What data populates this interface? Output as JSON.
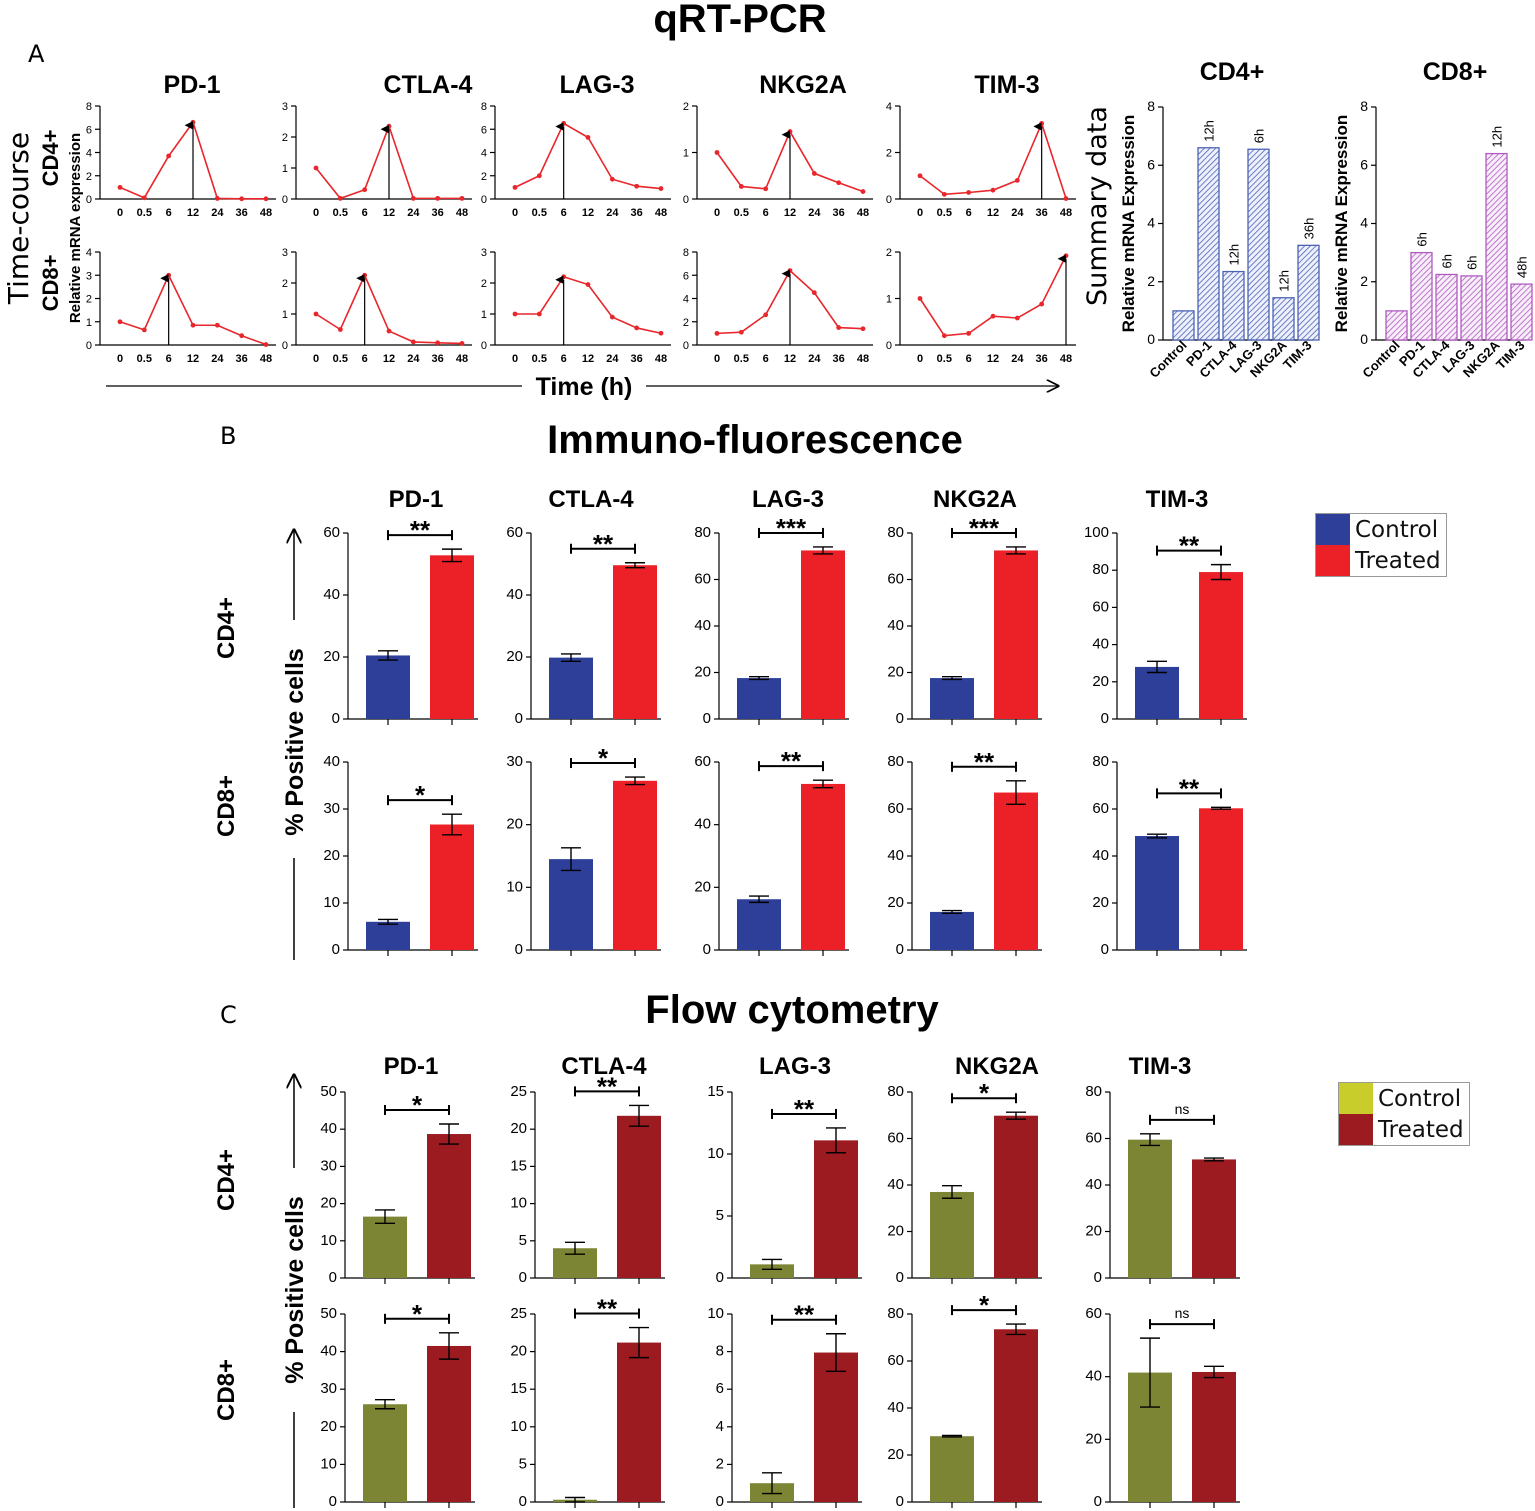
{
  "figure": {
    "section_a": {
      "letter": "A",
      "title": "qRT-PCR"
    },
    "section_b": {
      "letter": "B",
      "title": "Immuno-fluorescence"
    },
    "section_c": {
      "letter": "C",
      "title": "Flow cytometry"
    },
    "time_course_label": "Time-course",
    "summary_label": "Summary data",
    "time_axis_label": "Time (h)",
    "pos_cells_label": "% Positive cells",
    "cd4_label": "CD4+",
    "cd8_label": "CD8+",
    "legend_b": {
      "control": "Control",
      "treated": "Treated"
    },
    "legend_c": {
      "control": "Control",
      "treated": "Treated"
    },
    "colors": {
      "line": "#e8262b",
      "if_control": "#2e3f99",
      "if_treated": "#ec2027",
      "fc_control": "#7c8533",
      "fc_treated": "#9b1b20",
      "sum_cd4": "#4c63b6",
      "sum_cd8": "#b15bc0",
      "legend_fc_control": "#c9cd2c"
    }
  },
  "chart_data": [
    {
      "type": "line",
      "group": "timecourse",
      "genes": [
        "PD-1",
        "CTLA-4",
        "LAG-3",
        "NKG2A",
        "TIM-3"
      ],
      "x": [
        "0",
        "0.5",
        "6",
        "12",
        "24",
        "36",
        "48"
      ],
      "xlabel": "Time (h)",
      "ylabel": "Relative mRNA expression",
      "cd4": [
        {
          "gene": "PD-1",
          "ticks": [
            0,
            2,
            4,
            6,
            8
          ],
          "ylim": [
            0,
            8
          ],
          "values": [
            1,
            0.1,
            3.7,
            6.6,
            0.05,
            0.02,
            0.02
          ]
        },
        {
          "gene": "CTLA-4",
          "ticks": [
            0,
            1,
            2,
            3
          ],
          "ylim": [
            0,
            3
          ],
          "values": [
            1,
            0.02,
            0.3,
            2.35,
            0.02,
            0.02,
            0.02
          ]
        },
        {
          "gene": "LAG-3",
          "ticks": [
            0,
            2,
            4,
            6,
            8
          ],
          "ylim": [
            0,
            8
          ],
          "values": [
            1,
            2,
            6.5,
            5.3,
            1.7,
            1.1,
            0.9
          ]
        },
        {
          "gene": "NKG2A",
          "ticks": [
            0,
            1,
            2
          ],
          "ylim": [
            0,
            2
          ],
          "values": [
            1,
            0.27,
            0.22,
            1.45,
            0.55,
            0.35,
            0.16
          ]
        },
        {
          "gene": "TIM-3",
          "ticks": [
            0,
            2,
            4
          ],
          "ylim": [
            0,
            4
          ],
          "values": [
            1,
            0.2,
            0.28,
            0.38,
            0.8,
            3.25,
            0.02
          ]
        }
      ],
      "cd8": [
        {
          "gene": "PD-1",
          "ticks": [
            0,
            1,
            2,
            3,
            4
          ],
          "ylim": [
            0,
            4
          ],
          "values": [
            1,
            0.65,
            3,
            0.85,
            0.85,
            0.4,
            0.02
          ]
        },
        {
          "gene": "CTLA-4",
          "ticks": [
            0,
            1,
            2,
            3
          ],
          "ylim": [
            0,
            3
          ],
          "values": [
            1,
            0.5,
            2.25,
            0.45,
            0.1,
            0.07,
            0.05
          ]
        },
        {
          "gene": "LAG-3",
          "ticks": [
            0,
            1,
            2,
            3
          ],
          "ylim": [
            0,
            3
          ],
          "values": [
            1,
            1,
            2.2,
            1.95,
            0.9,
            0.55,
            0.38
          ]
        },
        {
          "gene": "NKG2A",
          "ticks": [
            0,
            2,
            4,
            6,
            8
          ],
          "ylim": [
            0,
            8
          ],
          "values": [
            1,
            1.1,
            2.6,
            6.4,
            4.5,
            1.5,
            1.4
          ]
        },
        {
          "gene": "TIM-3",
          "ticks": [
            0,
            1,
            2
          ],
          "ylim": [
            0,
            2
          ],
          "values": [
            1,
            0.2,
            0.25,
            0.62,
            0.58,
            0.88,
            1.92
          ]
        }
      ],
      "peak_index_cd4": [
        3,
        3,
        2,
        3,
        5
      ],
      "peak_index_cd8": [
        2,
        2,
        2,
        3,
        6
      ]
    },
    {
      "type": "bar",
      "group": "summary",
      "title": "CD4+",
      "ylabel": "Relative mRNA Expression",
      "categories": [
        "Control",
        "PD-1",
        "CTLA-4",
        "LAG-3",
        "NKG2A",
        "TIM-3"
      ],
      "values": [
        1,
        6.6,
        2.35,
        6.55,
        1.45,
        3.25
      ],
      "labels": [
        "",
        "12h",
        "12h",
        "6h",
        "12h",
        "36h"
      ],
      "ylim": [
        0,
        8
      ],
      "ticks": [
        0,
        2,
        4,
        6,
        8
      ]
    },
    {
      "type": "bar",
      "group": "summary",
      "title": "CD8+",
      "ylabel": "Relative mRNA Expression",
      "categories": [
        "Control",
        "PD-1",
        "CTLA-4",
        "LAG-3",
        "NKG2A",
        "TIM-3"
      ],
      "values": [
        1,
        3,
        2.25,
        2.2,
        6.4,
        1.92
      ],
      "labels": [
        "",
        "6h",
        "6h",
        "6h",
        "12h",
        "48h"
      ],
      "ylim": [
        0,
        8
      ],
      "ticks": [
        0,
        2,
        4,
        6,
        8
      ]
    },
    {
      "type": "bar",
      "group": "immunofluorescence",
      "genes": [
        "PD-1",
        "CTLA-4",
        "LAG-3",
        "NKG2A",
        "TIM-3"
      ],
      "series": [
        "Control",
        "Treated"
      ],
      "ylabel": "% Positive cells",
      "cd4": [
        {
          "gene": "PD-1",
          "ylim": [
            0,
            60
          ],
          "ticks": [
            0,
            20,
            40,
            60
          ],
          "control": 20.5,
          "treated": 52.8,
          "err_c": 1.5,
          "err_t": 2,
          "sig": "**"
        },
        {
          "gene": "CTLA-4",
          "ylim": [
            0,
            60
          ],
          "ticks": [
            0,
            20,
            40,
            60
          ],
          "control": 19.8,
          "treated": 49.6,
          "err_c": 1.2,
          "err_t": 0.8,
          "sig": "**"
        },
        {
          "gene": "LAG-3",
          "ylim": [
            0,
            80
          ],
          "ticks": [
            0,
            20,
            40,
            60,
            80
          ],
          "control": 17.6,
          "treated": 72.5,
          "err_c": 0.6,
          "err_t": 1.5,
          "sig": "***"
        },
        {
          "gene": "NKG2A",
          "ylim": [
            0,
            80
          ],
          "ticks": [
            0,
            20,
            40,
            60,
            80
          ],
          "control": 17.6,
          "treated": 72.5,
          "err_c": 0.6,
          "err_t": 1.5,
          "sig": "***"
        },
        {
          "gene": "TIM-3",
          "ylim": [
            0,
            100
          ],
          "ticks": [
            0,
            20,
            40,
            60,
            80,
            100
          ],
          "control": 28,
          "treated": 79,
          "err_c": 3,
          "err_t": 4,
          "sig": "**"
        }
      ],
      "cd8": [
        {
          "gene": "PD-1",
          "ylim": [
            0,
            40
          ],
          "ticks": [
            0,
            10,
            20,
            30,
            40
          ],
          "control": 6,
          "treated": 26.7,
          "err_c": 0.5,
          "err_t": 2.2,
          "sig": "*"
        },
        {
          "gene": "CTLA-4",
          "ylim": [
            0,
            30
          ],
          "ticks": [
            0,
            10,
            20,
            30
          ],
          "control": 14.5,
          "treated": 27,
          "err_c": 1.8,
          "err_t": 0.6,
          "sig": "*"
        },
        {
          "gene": "LAG-3",
          "ylim": [
            0,
            60
          ],
          "ticks": [
            0,
            20,
            40,
            60
          ],
          "control": 16.2,
          "treated": 53,
          "err_c": 1,
          "err_t": 1.2,
          "sig": "**"
        },
        {
          "gene": "NKG2A",
          "ylim": [
            0,
            80
          ],
          "ticks": [
            0,
            20,
            40,
            60,
            80
          ],
          "control": 16.2,
          "treated": 67,
          "err_c": 0.6,
          "err_t": 5,
          "sig": "**"
        },
        {
          "gene": "TIM-3",
          "ylim": [
            0,
            80
          ],
          "ticks": [
            0,
            20,
            40,
            60,
            80
          ],
          "control": 48.5,
          "treated": 60.3,
          "err_c": 0.8,
          "err_t": 0.4,
          "sig": "**"
        }
      ]
    },
    {
      "type": "bar",
      "group": "flow_cytometry",
      "genes": [
        "PD-1",
        "CTLA-4",
        "LAG-3",
        "NKG2A",
        "TIM-3"
      ],
      "series": [
        "Control",
        "Treated"
      ],
      "ylabel": "% Positive cells",
      "cd4": [
        {
          "gene": "PD-1",
          "ylim": [
            0,
            50
          ],
          "ticks": [
            0,
            10,
            20,
            30,
            40,
            50
          ],
          "control": 16.5,
          "treated": 38.7,
          "err_c": 1.8,
          "err_t": 2.7,
          "sig": "*"
        },
        {
          "gene": "CTLA-4",
          "ylim": [
            0,
            25
          ],
          "ticks": [
            0,
            5,
            10,
            15,
            20,
            25
          ],
          "control": 4,
          "treated": 21.8,
          "err_c": 0.8,
          "err_t": 1.4,
          "sig": "**"
        },
        {
          "gene": "LAG-3",
          "ylim": [
            0,
            15
          ],
          "ticks": [
            0,
            5,
            10,
            15
          ],
          "control": 1.1,
          "treated": 11.1,
          "err_c": 0.4,
          "err_t": 1,
          "sig": "**"
        },
        {
          "gene": "NKG2A",
          "ylim": [
            0,
            80
          ],
          "ticks": [
            0,
            20,
            40,
            60,
            80
          ],
          "control": 37,
          "treated": 69.8,
          "err_c": 2.7,
          "err_t": 1.5,
          "sig": "*"
        },
        {
          "gene": "TIM-3",
          "ylim": [
            0,
            80
          ],
          "ticks": [
            0,
            20,
            40,
            60,
            80
          ],
          "control": 59.5,
          "treated": 51,
          "err_c": 2.5,
          "err_t": 0.6,
          "sig": "ns"
        }
      ],
      "cd8": [
        {
          "gene": "PD-1",
          "ylim": [
            0,
            50
          ],
          "ticks": [
            0,
            10,
            20,
            30,
            40,
            50
          ],
          "control": 26,
          "treated": 41.5,
          "err_c": 1.2,
          "err_t": 3.5,
          "sig": "*"
        },
        {
          "gene": "CTLA-4",
          "ylim": [
            0,
            25
          ],
          "ticks": [
            0,
            5,
            10,
            15,
            20,
            25
          ],
          "control": 0.3,
          "treated": 21.2,
          "err_c": 0.3,
          "err_t": 2,
          "sig": "**"
        },
        {
          "gene": "LAG-3",
          "ylim": [
            0,
            10
          ],
          "ticks": [
            0,
            2,
            4,
            6,
            8,
            10
          ],
          "control": 1,
          "treated": 7.95,
          "err_c": 0.55,
          "err_t": 1,
          "sig": "**"
        },
        {
          "gene": "NKG2A",
          "ylim": [
            0,
            80
          ],
          "ticks": [
            0,
            20,
            40,
            60,
            80
          ],
          "control": 28,
          "treated": 73.5,
          "err_c": 0.3,
          "err_t": 2.2,
          "sig": "*"
        },
        {
          "gene": "TIM-3",
          "ylim": [
            0,
            60
          ],
          "ticks": [
            0,
            20,
            40,
            60
          ],
          "control": 41.3,
          "treated": 41.5,
          "err_c": 11,
          "err_t": 1.8,
          "sig": "ns"
        }
      ]
    }
  ]
}
